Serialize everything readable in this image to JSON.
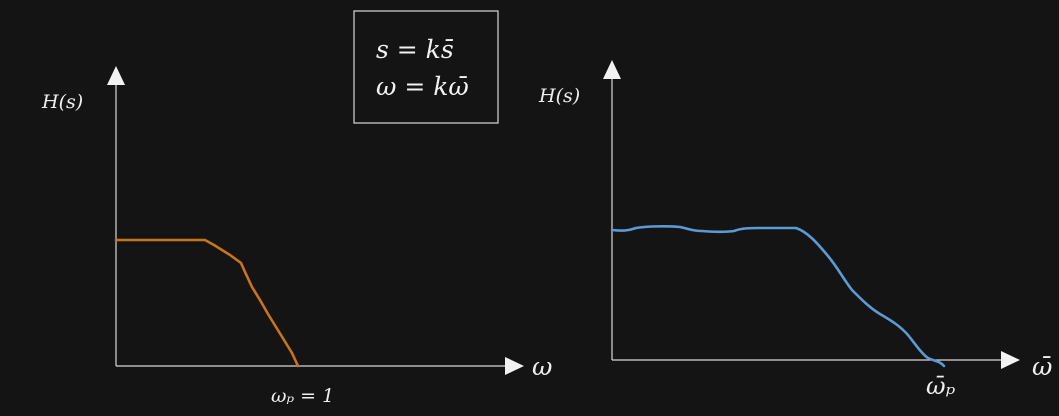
{
  "equations": {
    "line1": "s = ks̄",
    "line2": "ω = kω̄"
  },
  "left_plot": {
    "y_label": "H(s)",
    "x_label": "ω",
    "tick_label": "ωₚ = 1",
    "curve_color": "#c8741c"
  },
  "right_plot": {
    "y_label": "H(s)",
    "x_label": "ω̄",
    "tick_label": "ω̄ₚ",
    "curve_color": "#5b9bd5"
  }
}
